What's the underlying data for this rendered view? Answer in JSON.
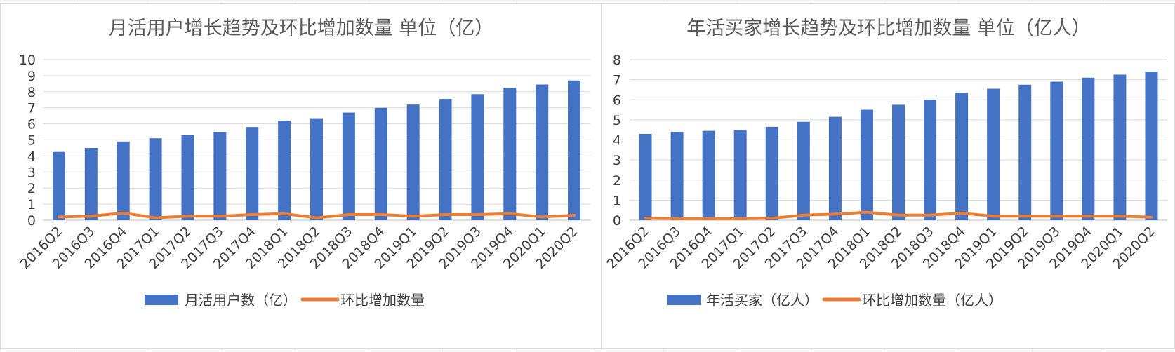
{
  "chart_data": [
    {
      "type": "bar",
      "title": "月活用户增长趋势及环比增加数量 单位（亿）",
      "categories": [
        "2016Q2",
        "2016Q3",
        "2016Q4",
        "2017Q1",
        "2017Q2",
        "2017Q3",
        "2017Q4",
        "2018Q1",
        "2018Q2",
        "2018Q3",
        "2018Q4",
        "2019Q1",
        "2019Q2",
        "2019Q3",
        "2019Q4",
        "2020Q1",
        "2020Q2"
      ],
      "ylim": [
        0,
        10
      ],
      "yticks": [
        "0",
        "1",
        "2",
        "3",
        "4",
        "5",
        "6",
        "7",
        "8",
        "9",
        "10"
      ],
      "grid": true,
      "legend_position": "bottom",
      "series": [
        {
          "name": "月活用户数（亿）",
          "kind": "bar",
          "color": "#4472C4",
          "values": [
            4.25,
            4.5,
            4.9,
            5.1,
            5.3,
            5.5,
            5.8,
            6.2,
            6.35,
            6.7,
            7.0,
            7.2,
            7.55,
            7.85,
            8.25,
            8.45,
            8.7
          ]
        },
        {
          "name": "环比增加数量",
          "kind": "line",
          "color": "#ED7D31",
          "values": [
            0.2,
            0.25,
            0.45,
            0.15,
            0.25,
            0.25,
            0.35,
            0.4,
            0.15,
            0.35,
            0.35,
            0.25,
            0.35,
            0.35,
            0.4,
            0.2,
            0.3
          ]
        }
      ]
    },
    {
      "type": "bar",
      "title": "年活买家增长趋势及环比增加数量 单位（亿人）",
      "categories": [
        "2016Q2",
        "2016Q3",
        "2016Q4",
        "2017Q1",
        "2017Q2",
        "2017Q3",
        "2017Q4",
        "2018Q1",
        "2018Q2",
        "2018Q3",
        "2018Q4",
        "2019Q1",
        "2019Q2",
        "2019Q3",
        "2019Q4",
        "2020Q1",
        "2020Q2"
      ],
      "ylim": [
        0,
        8
      ],
      "yticks": [
        "0",
        "1",
        "2",
        "3",
        "4",
        "5",
        "6",
        "7",
        "8"
      ],
      "grid": true,
      "legend_position": "bottom",
      "series": [
        {
          "name": "年活买家（亿人）",
          "kind": "bar",
          "color": "#4472C4",
          "values": [
            4.3,
            4.4,
            4.45,
            4.5,
            4.65,
            4.9,
            5.15,
            5.5,
            5.75,
            6.0,
            6.35,
            6.55,
            6.75,
            6.9,
            7.1,
            7.25,
            7.4
          ]
        },
        {
          "name": "环比增加数量（亿人）",
          "kind": "line",
          "color": "#ED7D31",
          "values": [
            0.1,
            0.08,
            0.08,
            0.08,
            0.1,
            0.25,
            0.3,
            0.4,
            0.25,
            0.25,
            0.35,
            0.2,
            0.2,
            0.2,
            0.2,
            0.2,
            0.15
          ]
        }
      ]
    }
  ]
}
